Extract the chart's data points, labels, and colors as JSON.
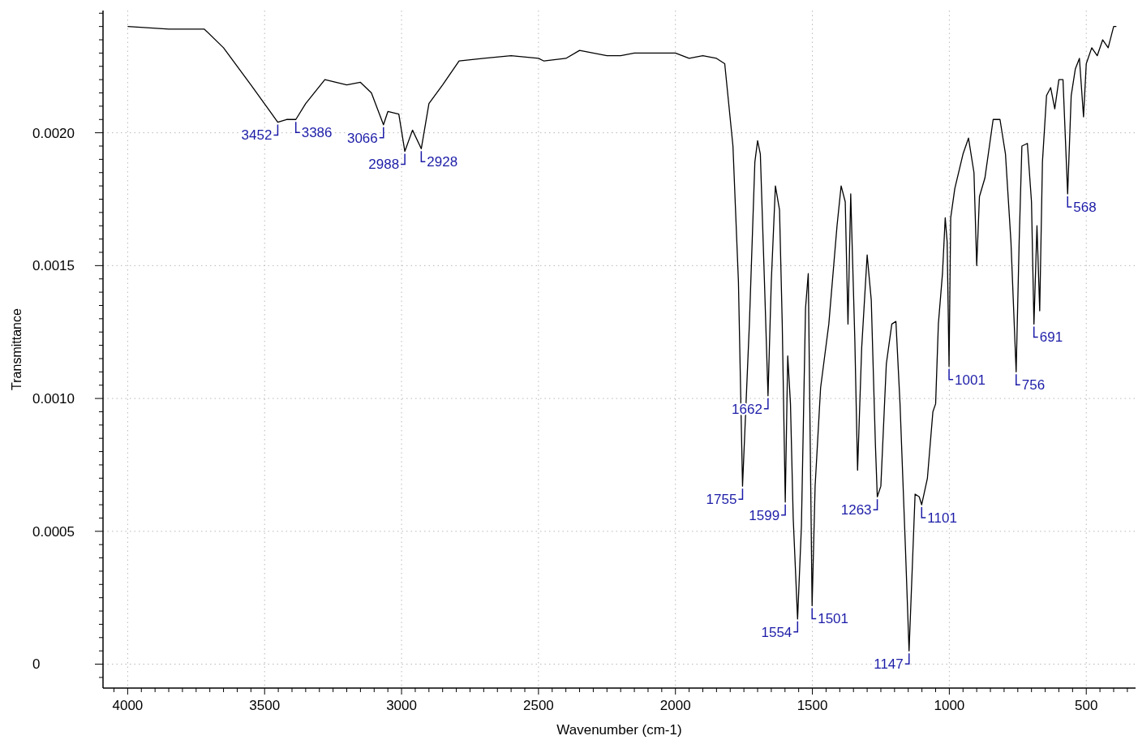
{
  "chart_data": {
    "type": "line",
    "xlabel": "Wavenumber (cm-1)",
    "ylabel": "Transmittance",
    "xlim": [
      4090,
      320
    ],
    "ylim": [
      -9e-05,
      0.00246
    ],
    "grid": true,
    "marker": "none",
    "line_style": "solid",
    "xticks": [
      {
        "value": 350,
        "label": null
      },
      {
        "value": 400,
        "label": null
      },
      {
        "value": 450,
        "label": null
      },
      500,
      {
        "value": 550,
        "label": null
      },
      {
        "value": 600,
        "label": null
      },
      {
        "value": 650,
        "label": null
      },
      {
        "value": 700,
        "label": null
      },
      {
        "value": 750,
        "label": null
      },
      {
        "value": 800,
        "label": null
      },
      {
        "value": 850,
        "label": null
      },
      {
        "value": 900,
        "label": null
      },
      {
        "value": 950,
        "label": null
      },
      1000,
      {
        "value": 1050,
        "label": null
      },
      {
        "value": 1100,
        "label": null
      },
      {
        "value": 1150,
        "label": null
      },
      {
        "value": 1200,
        "label": null
      },
      {
        "value": 1250,
        "label": null
      },
      {
        "value": 1300,
        "label": null
      },
      {
        "value": 1350,
        "label": null
      },
      {
        "value": 1400,
        "label": null
      },
      {
        "value": 1450,
        "label": null
      },
      1500,
      {
        "value": 1550,
        "label": null
      },
      {
        "value": 1600,
        "label": null
      },
      {
        "value": 1650,
        "label": null
      },
      {
        "value": 1700,
        "label": null
      },
      {
        "value": 1750,
        "label": null
      },
      {
        "value": 1800,
        "label": null
      },
      {
        "value": 1850,
        "label": null
      },
      {
        "value": 1900,
        "label": null
      },
      {
        "value": 1950,
        "label": null
      },
      2000,
      {
        "value": 2050,
        "label": null
      },
      {
        "value": 2100,
        "label": null
      },
      {
        "value": 2150,
        "label": null
      },
      {
        "value": 2200,
        "label": null
      },
      {
        "value": 2250,
        "label": null
      },
      {
        "value": 2300,
        "label": null
      },
      {
        "value": 2350,
        "label": null
      },
      {
        "value": 2400,
        "label": null
      },
      {
        "value": 2450,
        "label": null
      },
      2500,
      {
        "value": 2550,
        "label": null
      },
      {
        "value": 2600,
        "label": null
      },
      {
        "value": 2650,
        "label": null
      },
      {
        "value": 2700,
        "label": null
      },
      {
        "value": 2750,
        "label": null
      },
      {
        "value": 2800,
        "label": null
      },
      {
        "value": 2850,
        "label": null
      },
      {
        "value": 2900,
        "label": null
      },
      {
        "value": 2950,
        "label": null
      },
      3000,
      {
        "value": 3050,
        "label": null
      },
      {
        "value": 3100,
        "label": null
      },
      {
        "value": 3150,
        "label": null
      },
      {
        "value": 3200,
        "label": null
      },
      {
        "value": 3250,
        "label": null
      },
      {
        "value": 3300,
        "label": null
      },
      {
        "value": 3350,
        "label": null
      },
      {
        "value": 3400,
        "label": null
      },
      {
        "value": 3450,
        "label": null
      },
      3500,
      {
        "value": 3550,
        "label": null
      },
      {
        "value": 3600,
        "label": null
      },
      {
        "value": 3650,
        "label": null
      },
      {
        "value": 3700,
        "label": null
      },
      {
        "value": 3750,
        "label": null
      },
      {
        "value": 3800,
        "label": null
      },
      {
        "value": 3850,
        "label": null
      },
      {
        "value": 3900,
        "label": null
      },
      {
        "value": 3950,
        "label": null
      },
      4000,
      {
        "value": 4050,
        "label": null
      }
    ],
    "yticks": [
      {
        "value": -5e-05,
        "label": null
      },
      0,
      {
        "value": 5e-05,
        "label": null
      },
      {
        "value": 0.0001,
        "label": null
      },
      {
        "value": 0.00015,
        "label": null
      },
      {
        "value": 0.0002,
        "label": null
      },
      {
        "value": 0.00025,
        "label": null
      },
      {
        "value": 0.0003,
        "label": null
      },
      {
        "value": 0.00035,
        "label": null
      },
      {
        "value": 0.0004,
        "label": null
      },
      {
        "value": 0.00045,
        "label": null
      },
      {
        "value": 0.0005,
        "label": "0.0005"
      },
      {
        "value": 0.00055,
        "label": null
      },
      {
        "value": 0.0006,
        "label": null
      },
      {
        "value": 0.00065,
        "label": null
      },
      {
        "value": 0.0007,
        "label": null
      },
      {
        "value": 0.00075,
        "label": null
      },
      {
        "value": 0.0008,
        "label": null
      },
      {
        "value": 0.00085,
        "label": null
      },
      {
        "value": 0.0009,
        "label": null
      },
      {
        "value": 0.00095,
        "label": null
      },
      {
        "value": 0.001,
        "label": "0.0010"
      },
      {
        "value": 0.00105,
        "label": null
      },
      {
        "value": 0.0011,
        "label": null
      },
      {
        "value": 0.00115,
        "label": null
      },
      {
        "value": 0.0012,
        "label": null
      },
      {
        "value": 0.00125,
        "label": null
      },
      {
        "value": 0.0013,
        "label": null
      },
      {
        "value": 0.00135,
        "label": null
      },
      {
        "value": 0.0014,
        "label": null
      },
      {
        "value": 0.00145,
        "label": null
      },
      {
        "value": 0.0015,
        "label": "0.0015"
      },
      {
        "value": 0.00155,
        "label": null
      },
      {
        "value": 0.0016,
        "label": null
      },
      {
        "value": 0.00165,
        "label": null
      },
      {
        "value": 0.0017,
        "label": null
      },
      {
        "value": 0.00175,
        "label": null
      },
      {
        "value": 0.0018,
        "label": null
      },
      {
        "value": 0.00185,
        "label": null
      },
      {
        "value": 0.0019,
        "label": null
      },
      {
        "value": 0.00195,
        "label": null
      },
      {
        "value": 0.002,
        "label": "0.0020"
      },
      {
        "value": 0.00205,
        "label": null
      },
      {
        "value": 0.0021,
        "label": null
      },
      {
        "value": 0.00215,
        "label": null
      },
      {
        "value": 0.0022,
        "label": null
      },
      {
        "value": 0.00225,
        "label": null
      },
      {
        "value": 0.0023,
        "label": null
      },
      {
        "value": 0.00235,
        "label": null
      },
      {
        "value": 0.0024,
        "label": null
      },
      {
        "value": 0.00245,
        "label": null
      }
    ],
    "series": [
      {
        "color": "#000000",
        "x": [
          4000,
          3850,
          3720,
          3650,
          3550,
          3480,
          3452,
          3420,
          3386,
          3350,
          3280,
          3240,
          3200,
          3150,
          3110,
          3066,
          3050,
          3010,
          2988,
          2960,
          2928,
          2900,
          2850,
          2790,
          2700,
          2600,
          2500,
          2480,
          2400,
          2350,
          2250,
          2200,
          2150,
          2000,
          1950,
          1900,
          1850,
          1820,
          1790,
          1770,
          1755,
          1730,
          1710,
          1700,
          1690,
          1675,
          1662,
          1650,
          1635,
          1620,
          1610,
          1599,
          1590,
          1580,
          1570,
          1554,
          1540,
          1525,
          1515,
          1501,
          1490,
          1470,
          1440,
          1410,
          1395,
          1380,
          1370,
          1360,
          1345,
          1335,
          1320,
          1300,
          1285,
          1270,
          1263,
          1250,
          1230,
          1210,
          1195,
          1180,
          1160,
          1147,
          1135,
          1125,
          1110,
          1101,
          1080,
          1060,
          1050,
          1040,
          1025,
          1015,
          1008,
          1001,
          995,
          980,
          950,
          930,
          910,
          900,
          890,
          870,
          840,
          815,
          795,
          775,
          756,
          745,
          735,
          715,
          700,
          691,
          680,
          670,
          660,
          645,
          630,
          615,
          600,
          585,
          568,
          555,
          540,
          525,
          510,
          500,
          480,
          460,
          440,
          420,
          400,
          390
        ],
        "values": [
          0.0024,
          0.00239,
          0.00239,
          0.00232,
          0.00218,
          0.00208,
          0.00204,
          0.00205,
          0.00205,
          0.00211,
          0.0022,
          0.00219,
          0.00218,
          0.00219,
          0.00215,
          0.00203,
          0.00208,
          0.00207,
          0.00193,
          0.00201,
          0.00194,
          0.00211,
          0.00218,
          0.00227,
          0.00228,
          0.00229,
          0.00228,
          0.00227,
          0.00228,
          0.00231,
          0.00229,
          0.00229,
          0.0023,
          0.0023,
          0.00228,
          0.00229,
          0.00228,
          0.00226,
          0.00195,
          0.00144,
          0.00067,
          0.00128,
          0.00189,
          0.00197,
          0.00192,
          0.00144,
          0.00101,
          0.00144,
          0.0018,
          0.00171,
          0.00128,
          0.00061,
          0.00116,
          0.00098,
          0.00055,
          0.00017,
          0.00052,
          0.00134,
          0.00147,
          0.00022,
          0.00067,
          0.00104,
          0.00128,
          0.00165,
          0.0018,
          0.00174,
          0.00128,
          0.00177,
          0.00122,
          0.00073,
          0.00119,
          0.00154,
          0.00137,
          0.00083,
          0.00063,
          0.00067,
          0.00113,
          0.00128,
          0.00129,
          0.00098,
          0.00043,
          5e-05,
          0.00037,
          0.00064,
          0.00063,
          0.0006,
          0.0007,
          0.00095,
          0.00098,
          0.00128,
          0.00147,
          0.00168,
          0.00159,
          0.00112,
          0.00168,
          0.00179,
          0.00192,
          0.00198,
          0.00185,
          0.0015,
          0.00176,
          0.00183,
          0.00205,
          0.00205,
          0.00192,
          0.00159,
          0.0011,
          0.00159,
          0.00195,
          0.00196,
          0.00174,
          0.00128,
          0.00165,
          0.00133,
          0.00189,
          0.00214,
          0.00217,
          0.00209,
          0.0022,
          0.0022,
          0.00177,
          0.00214,
          0.00224,
          0.00228,
          0.00206,
          0.00226,
          0.00232,
          0.00229,
          0.00235,
          0.00232,
          0.0024,
          0.0024
        ]
      }
    ],
    "annotations": [
      {
        "text": "3452",
        "x": 3452,
        "y": 0.00204
      },
      {
        "text": "3386",
        "x": 3386,
        "y": 0.00205
      },
      {
        "text": "3066",
        "x": 3066,
        "y": 0.00203
      },
      {
        "text": "2988",
        "x": 2988,
        "y": 0.00193
      },
      {
        "text": "2928",
        "x": 2928,
        "y": 0.00194
      },
      {
        "text": "1755",
        "x": 1755,
        "y": 0.00067
      },
      {
        "text": "1662",
        "x": 1662,
        "y": 0.00101
      },
      {
        "text": "1599",
        "x": 1599,
        "y": 0.00061
      },
      {
        "text": "1554",
        "x": 1554,
        "y": 0.00017
      },
      {
        "text": "1501",
        "x": 1501,
        "y": 0.00022
      },
      {
        "text": "1263",
        "x": 1263,
        "y": 0.00063
      },
      {
        "text": "1147",
        "x": 1147,
        "y": 5e-05
      },
      {
        "text": "1101",
        "x": 1101,
        "y": 0.0006
      },
      {
        "text": "1001",
        "x": 1001,
        "y": 0.00112
      },
      {
        "text": "756",
        "x": 756,
        "y": 0.0011
      },
      {
        "text": "691",
        "x": 691,
        "y": 0.00128
      },
      {
        "text": "568",
        "x": 568,
        "y": 0.00177
      }
    ]
  }
}
